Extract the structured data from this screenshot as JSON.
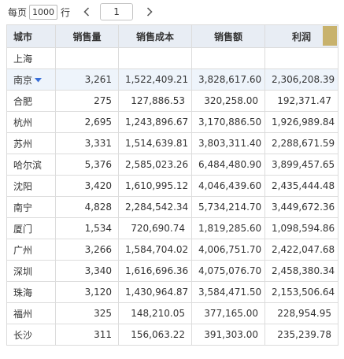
{
  "pager": {
    "per_page_label": "每页",
    "per_page_value": "1000",
    "rows_label": "行",
    "current_page": "1"
  },
  "table": {
    "columns": [
      "城市",
      "销售量",
      "销售成本",
      "销售额",
      "利润"
    ],
    "rows": [
      {
        "city": "上海",
        "qty": "",
        "cost": "",
        "sales": "",
        "profit": ""
      },
      {
        "city": "南京",
        "qty": "3,261",
        "cost": "1,522,409.21",
        "sales": "3,828,617.60",
        "profit": "2,306,208.39"
      },
      {
        "city": "合肥",
        "qty": "275",
        "cost": "127,886.53",
        "sales": "320,258.00",
        "profit": "192,371.47"
      },
      {
        "city": "杭州",
        "qty": "2,695",
        "cost": "1,243,896.67",
        "sales": "3,170,886.50",
        "profit": "1,926,989.84"
      },
      {
        "city": "苏州",
        "qty": "3,331",
        "cost": "1,514,639.81",
        "sales": "3,803,311.40",
        "profit": "2,288,671.59"
      },
      {
        "city": "哈尔滨",
        "qty": "5,376",
        "cost": "2,585,023.26",
        "sales": "6,484,480.90",
        "profit": "3,899,457.65"
      },
      {
        "city": "沈阳",
        "qty": "3,420",
        "cost": "1,610,995.12",
        "sales": "4,046,439.60",
        "profit": "2,435,444.48"
      },
      {
        "city": "南宁",
        "qty": "4,828",
        "cost": "2,284,542.34",
        "sales": "5,734,214.70",
        "profit": "3,449,672.36"
      },
      {
        "city": "厦门",
        "qty": "1,534",
        "cost": "720,690.74",
        "sales": "1,819,285.60",
        "profit": "1,098,594.86"
      },
      {
        "city": "广州",
        "qty": "3,266",
        "cost": "1,584,704.02",
        "sales": "4,006,751.70",
        "profit": "2,422,047.68"
      },
      {
        "city": "深圳",
        "qty": "3,340",
        "cost": "1,616,696.36",
        "sales": "4,075,076.70",
        "profit": "2,458,380.34"
      },
      {
        "city": "珠海",
        "qty": "3,120",
        "cost": "1,430,964.87",
        "sales": "3,584,471.50",
        "profit": "2,153,506.64"
      },
      {
        "city": "福州",
        "qty": "325",
        "cost": "148,210.05",
        "sales": "377,165.00",
        "profit": "228,954.95"
      },
      {
        "city": "长沙",
        "qty": "311",
        "cost": "156,063.22",
        "sales": "391,303.00",
        "profit": "235,239.78"
      }
    ]
  },
  "colors": {
    "header_bg": "#e8edf4",
    "selected_row_bg": "#eef4fb",
    "caret": "#3a6fd8",
    "handle": "#c8b26c"
  },
  "icons": {
    "prev": "chevron-left-icon",
    "next": "chevron-right-icon",
    "row_caret": "caret-down-icon"
  }
}
